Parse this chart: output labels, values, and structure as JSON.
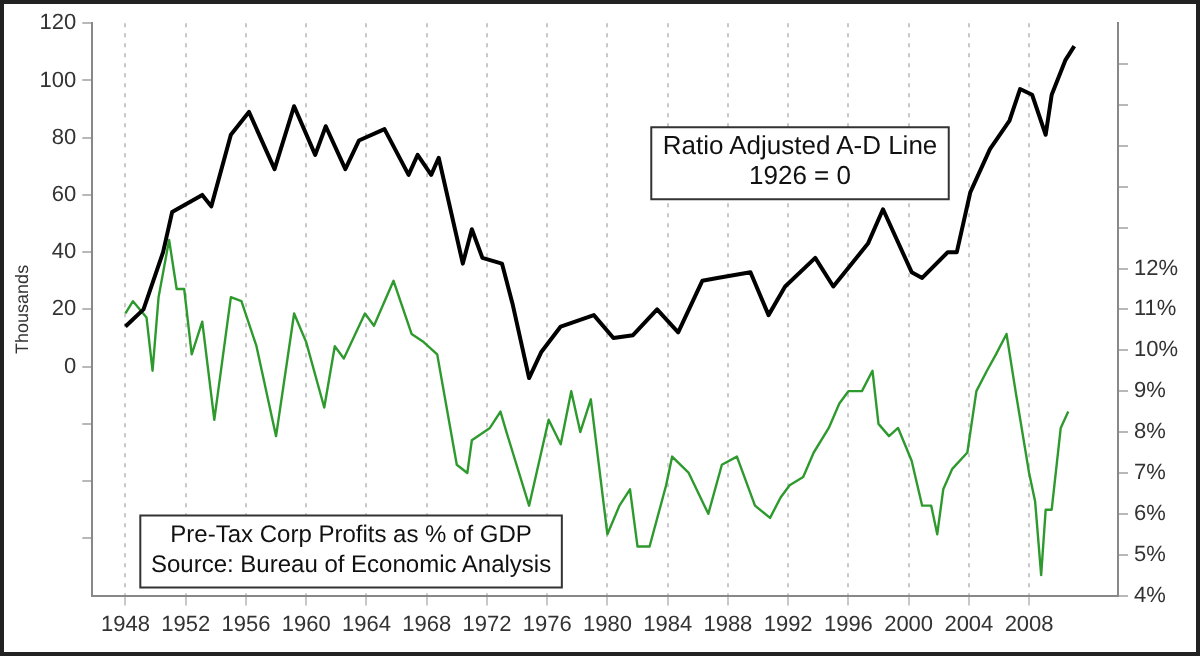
{
  "chart_data": {
    "type": "line",
    "ylabel": "Thousands",
    "annotations": [
      "Ratio Adjusted A-D Line\n1926 = 0",
      "Pre-Tax Corp Profits as % of GDP\nSource: Bureau of Economic Analysis"
    ],
    "xlim": [
      1945.8,
      2013.9
    ],
    "xticks": [
      1948,
      1952,
      1956,
      1960,
      1964,
      1968,
      1972,
      1976,
      1980,
      1984,
      1988,
      1992,
      1996,
      2000,
      2004,
      2008
    ],
    "ylim": [
      -80,
      120
    ],
    "yticks": [
      {
        "value": -60,
        "label": null
      },
      {
        "value": -40,
        "label": null
      },
      {
        "value": -20,
        "label": null
      },
      0,
      20,
      40,
      60,
      80,
      100,
      120
    ],
    "y2lim": [
      4,
      18
    ],
    "y2ticks": [
      {
        "value": 4,
        "label": "4%"
      },
      {
        "value": 5,
        "label": "5%"
      },
      {
        "value": 6,
        "label": "6%"
      },
      {
        "value": 7,
        "label": "7%"
      },
      {
        "value": 8,
        "label": "8%"
      },
      {
        "value": 9,
        "label": "9%"
      },
      {
        "value": 10,
        "label": "10%"
      },
      {
        "value": 11,
        "label": "11%"
      },
      {
        "value": 12,
        "label": "12%"
      },
      {
        "value": 13,
        "label": null
      },
      {
        "value": 14,
        "label": null
      },
      {
        "value": 15,
        "label": null
      },
      {
        "value": 16,
        "label": null
      },
      {
        "value": 17,
        "label": null
      }
    ],
    "grid": "x",
    "legend": false,
    "marker": "none",
    "series": [
      {
        "color": "#000000",
        "x": [
          1948.0,
          1949.2,
          1950.5,
          1951.1,
          1953.1,
          1953.7,
          1955.0,
          1956.2,
          1957.9,
          1959.2,
          1960.6,
          1961.3,
          1962.6,
          1963.5,
          1965.2,
          1966.8,
          1967.4,
          1968.3,
          1968.8,
          1970.4,
          1971.0,
          1971.7,
          1973.0,
          1973.7,
          1974.8,
          1975.6,
          1976.9,
          1979.1,
          1980.4,
          1981.7,
          1983.3,
          1984.7,
          1986.3,
          1987.3,
          1989.5,
          1990.7,
          1991.8,
          1993.8,
          1995.0,
          1997.3,
          1998.3,
          2000.2,
          2000.9,
          2002.6,
          2003.2,
          2004.1,
          2005.4,
          2006.7,
          2007.4,
          2008.2,
          2009.1,
          2009.5,
          2010.4,
          2011.0
        ],
        "values": [
          14,
          20,
          40,
          54,
          60,
          56,
          81,
          89,
          69,
          91,
          74,
          84,
          69,
          79,
          83,
          67,
          74,
          67,
          73,
          36,
          48,
          38,
          36,
          22,
          -4,
          5,
          14,
          18,
          10,
          11,
          20,
          12,
          30,
          31,
          33,
          18,
          28,
          38,
          28,
          43,
          55,
          33,
          31,
          40,
          40,
          61,
          76,
          86,
          97,
          95,
          81,
          95,
          107,
          112
        ]
      },
      {
        "color": "#2e9a2e",
        "axis": "y2",
        "x": [
          1948.0,
          1948.5,
          1949.4,
          1949.8,
          1950.2,
          1950.9,
          1951.4,
          1951.9,
          1952.4,
          1953.1,
          1953.9,
          1955.0,
          1955.7,
          1956.7,
          1958.0,
          1959.2,
          1960.0,
          1961.2,
          1961.9,
          1962.5,
          1963.9,
          1964.5,
          1965.8,
          1967.0,
          1967.8,
          1968.7,
          1970.0,
          1970.7,
          1971.0,
          1972.2,
          1972.9,
          1973.3,
          1974.8,
          1976.1,
          1976.9,
          1977.6,
          1978.2,
          1978.9,
          1980.0,
          1980.8,
          1981.5,
          1982.0,
          1982.8,
          1983.9,
          1984.3,
          1985.4,
          1986.7,
          1987.6,
          1988.6,
          1989.8,
          1990.8,
          1991.5,
          1992.1,
          1993.0,
          1993.7,
          1994.7,
          1995.4,
          1996.0,
          1996.9,
          1997.6,
          1998.0,
          1998.7,
          1999.3,
          2000.2,
          2000.9,
          2001.5,
          2001.9,
          2002.3,
          2002.9,
          2003.9,
          2004.5,
          2005.2,
          2005.8,
          2006.5,
          2007.1,
          2008.0,
          2008.4,
          2008.8,
          2009.1,
          2009.5,
          2010.1,
          2010.6
        ],
        "values": [
          10.9,
          11.2,
          10.8,
          9.5,
          11.3,
          12.7,
          11.5,
          11.5,
          9.9,
          10.7,
          8.3,
          11.3,
          11.2,
          10.1,
          7.9,
          10.9,
          10.2,
          8.6,
          10.1,
          9.8,
          10.9,
          10.6,
          11.7,
          10.4,
          10.2,
          9.9,
          7.2,
          7.0,
          7.8,
          8.1,
          8.5,
          8.0,
          6.2,
          8.3,
          7.7,
          9.0,
          8.0,
          8.8,
          5.5,
          6.2,
          6.6,
          5.2,
          5.2,
          6.7,
          7.4,
          7.0,
          6.0,
          7.2,
          7.4,
          6.2,
          5.9,
          6.4,
          6.7,
          6.9,
          7.5,
          8.1,
          8.7,
          9.0,
          9.0,
          9.5,
          8.2,
          7.9,
          8.1,
          7.3,
          6.2,
          6.2,
          5.5,
          6.6,
          7.1,
          7.5,
          9.0,
          9.5,
          9.9,
          10.4,
          9.0,
          7.0,
          6.3,
          4.5,
          6.1,
          6.1,
          8.1,
          8.5
        ]
      }
    ]
  }
}
